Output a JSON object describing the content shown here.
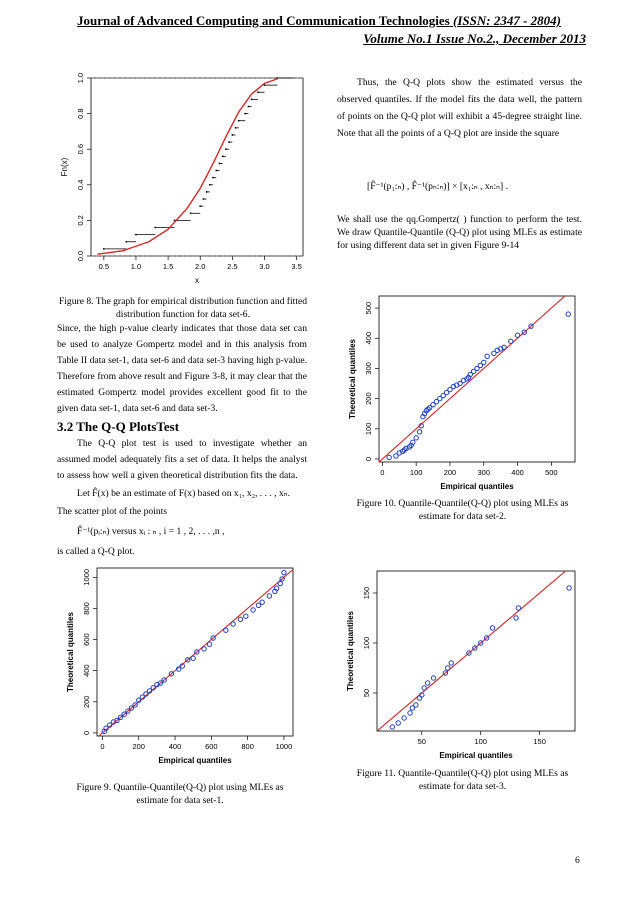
{
  "header": {
    "journal": "Journal of Advanced Computing and Communication Technologies",
    "issn": "(ISSN: 2347 - 2804)",
    "volume": "Volume No.1 Issue No.2., December 2013"
  },
  "left": {
    "fig8_caption": "Figure 8. The graph for empirical distribution function and fitted distribution function for data set-6.",
    "para1": "Since, the high p-value clearly indicates that those data set can be used to analyze Gompertz model and in this analysis from Table II data set-1, data set-6 and data set-3 having high p-value. Therefore from above result and Figure 3-8, it may clear that the estimated Gompertz model provides excellent good fit to the given data set-1, data set-6 and data set-3.",
    "section_title": "3.2 The Q-Q PlotsTest",
    "para2": "The Q-Q plot test is used to investigate whether an assumed model adequately fits a set of data. It helps the analyst to assess how well a given theoretical distribution fits the data.",
    "let_line": "Let F̂(x) be an estimate of F(x) based on x₁, x₂, . . . , xₙ.",
    "scatter_line": "The scatter plot of the points",
    "formula_line": "F̂⁻¹(pᵢ:ₙ)   versus   xᵢ : ₙ ,   i = 1 , 2, . . . ,n ,",
    "qq_line": "is called a Q-Q plot.",
    "fig9_caption": "Figure 9. Quantile-Quantile(Q-Q) plot using MLEs as estimate for data set-1."
  },
  "right": {
    "para1": "Thus, the Q-Q plots show the estimated versus the observed quantiles. If the model fits the data well, the pattern of points on the Q-Q plot will exhibit a 45-degree straight line. Note that all the points of a Q-Q plot are inside the square",
    "formula": "[F̂⁻¹(p₁:ₙ) , F̂⁻¹(pₙ:ₙ)]  ×  [x₁:ₙ , xₙ:ₙ] .",
    "para2": "We shall use the qq.Gompertz( ) function to perform the test. We draw Quantile-Quantile (Q-Q) plot using MLEs as estimate for using different data set in given Figure 9-14",
    "fig10_caption": "Figure 10. Quantile-Quantile(Q-Q) plot using MLEs as estimate for data set-2.",
    "fig11_caption": "Figure 11. Quantile-Quantile(Q-Q) plot using MLEs as estimate for data set-3."
  },
  "page_number": "6",
  "colors": {
    "fit_line": "#d62728",
    "points": "#1f3fbf"
  },
  "chart_data": [
    {
      "id": "fig8",
      "type": "line",
      "xlabel": "x",
      "ylabel": "Fn(x)",
      "xlim": [
        0.3,
        3.6
      ],
      "ylim": [
        0.0,
        1.0
      ],
      "xticks": [
        "0.5",
        "1.0",
        "1.5",
        "2.0",
        "2.5",
        "3.0",
        "3.5"
      ],
      "yticks": [
        "0.0",
        "0.2",
        "0.4",
        "0.6",
        "0.8",
        "1.0"
      ],
      "ecdf_x": [
        0.5,
        0.85,
        1.0,
        1.3,
        1.6,
        1.85,
        2.0,
        2.05,
        2.1,
        2.15,
        2.2,
        2.25,
        2.3,
        2.35,
        2.4,
        2.45,
        2.5,
        2.55,
        2.6,
        2.7,
        2.75,
        2.8,
        2.9,
        3.0,
        3.2
      ],
      "ecdf_y": [
        0.04,
        0.08,
        0.12,
        0.16,
        0.2,
        0.24,
        0.28,
        0.32,
        0.36,
        0.4,
        0.44,
        0.48,
        0.52,
        0.56,
        0.6,
        0.64,
        0.68,
        0.72,
        0.76,
        0.8,
        0.84,
        0.88,
        0.92,
        0.96,
        1.0
      ],
      "fit_x": [
        0.4,
        0.8,
        1.2,
        1.5,
        1.8,
        2.0,
        2.2,
        2.4,
        2.6,
        2.8,
        3.0,
        3.2
      ],
      "fit_y": [
        0.01,
        0.03,
        0.08,
        0.15,
        0.27,
        0.38,
        0.52,
        0.67,
        0.81,
        0.91,
        0.97,
        0.995
      ]
    },
    {
      "id": "fig9",
      "type": "scatter",
      "xlabel": "Empirical quantiles",
      "ylabel": "Theoretical quantiles",
      "xlim": [
        -30,
        1050
      ],
      "ylim": [
        -20,
        1060
      ],
      "xticks": [
        "0",
        "200",
        "400",
        "600",
        "800",
        "1000"
      ],
      "yticks": [
        "0",
        "200",
        "400",
        "600",
        "800",
        "1000"
      ],
      "x": [
        10,
        20,
        40,
        60,
        80,
        100,
        120,
        140,
        160,
        180,
        200,
        220,
        240,
        260,
        280,
        300,
        320,
        340,
        380,
        420,
        440,
        470,
        500,
        520,
        560,
        590,
        610,
        680,
        720,
        760,
        790,
        830,
        860,
        880,
        920,
        950,
        960,
        980,
        990,
        1000
      ],
      "y": [
        10,
        30,
        50,
        70,
        80,
        100,
        120,
        140,
        160,
        180,
        210,
        230,
        250,
        270,
        290,
        310,
        320,
        340,
        380,
        410,
        430,
        470,
        480,
        520,
        540,
        570,
        610,
        660,
        700,
        730,
        750,
        790,
        820,
        840,
        880,
        910,
        930,
        960,
        990,
        1030
      ],
      "line": [
        [
          -30,
          -30
        ],
        [
          1050,
          1050
        ]
      ]
    },
    {
      "id": "fig10",
      "type": "scatter",
      "xlabel": "Empirical quantiles",
      "ylabel": "Theoretical quantiles",
      "xlim": [
        -10,
        570
      ],
      "ylim": [
        -10,
        540
      ],
      "xticks": [
        "0",
        "100",
        "200",
        "300",
        "400",
        "500"
      ],
      "yticks": [
        "0",
        "100",
        "200",
        "300",
        "400",
        "500"
      ],
      "x": [
        20,
        40,
        50,
        60,
        65,
        70,
        80,
        85,
        90,
        100,
        110,
        115,
        120,
        125,
        130,
        135,
        140,
        150,
        160,
        170,
        180,
        190,
        200,
        210,
        220,
        230,
        240,
        250,
        255,
        260,
        270,
        280,
        290,
        300,
        310,
        330,
        340,
        350,
        360,
        380,
        400,
        420,
        440,
        550
      ],
      "y": [
        5,
        10,
        20,
        25,
        30,
        35,
        40,
        45,
        55,
        70,
        90,
        110,
        140,
        150,
        160,
        165,
        170,
        180,
        190,
        200,
        210,
        220,
        230,
        240,
        245,
        250,
        260,
        265,
        270,
        280,
        290,
        300,
        310,
        320,
        340,
        350,
        360,
        365,
        370,
        390,
        410,
        420,
        440,
        480
      ],
      "line": [
        [
          -10,
          -10
        ],
        [
          560,
          560
        ]
      ]
    },
    {
      "id": "fig11",
      "type": "scatter",
      "xlabel": "Empirical quantiles",
      "ylabel": "Theoretical quantiles",
      "xlim": [
        12,
        180
      ],
      "ylim": [
        12,
        172
      ],
      "xticks": [
        "50",
        "100",
        "150"
      ],
      "yticks": [
        "50",
        "100",
        "150"
      ],
      "x": [
        25,
        30,
        35,
        40,
        42,
        45,
        48,
        50,
        52,
        55,
        60,
        70,
        72,
        75,
        90,
        95,
        100,
        105,
        110,
        130,
        132,
        175
      ],
      "y": [
        16,
        20,
        25,
        30,
        35,
        38,
        45,
        48,
        55,
        60,
        65,
        70,
        75,
        80,
        90,
        95,
        100,
        105,
        115,
        125,
        135,
        155
      ],
      "line": [
        [
          12,
          12
        ],
        [
          180,
          180
        ]
      ]
    }
  ]
}
